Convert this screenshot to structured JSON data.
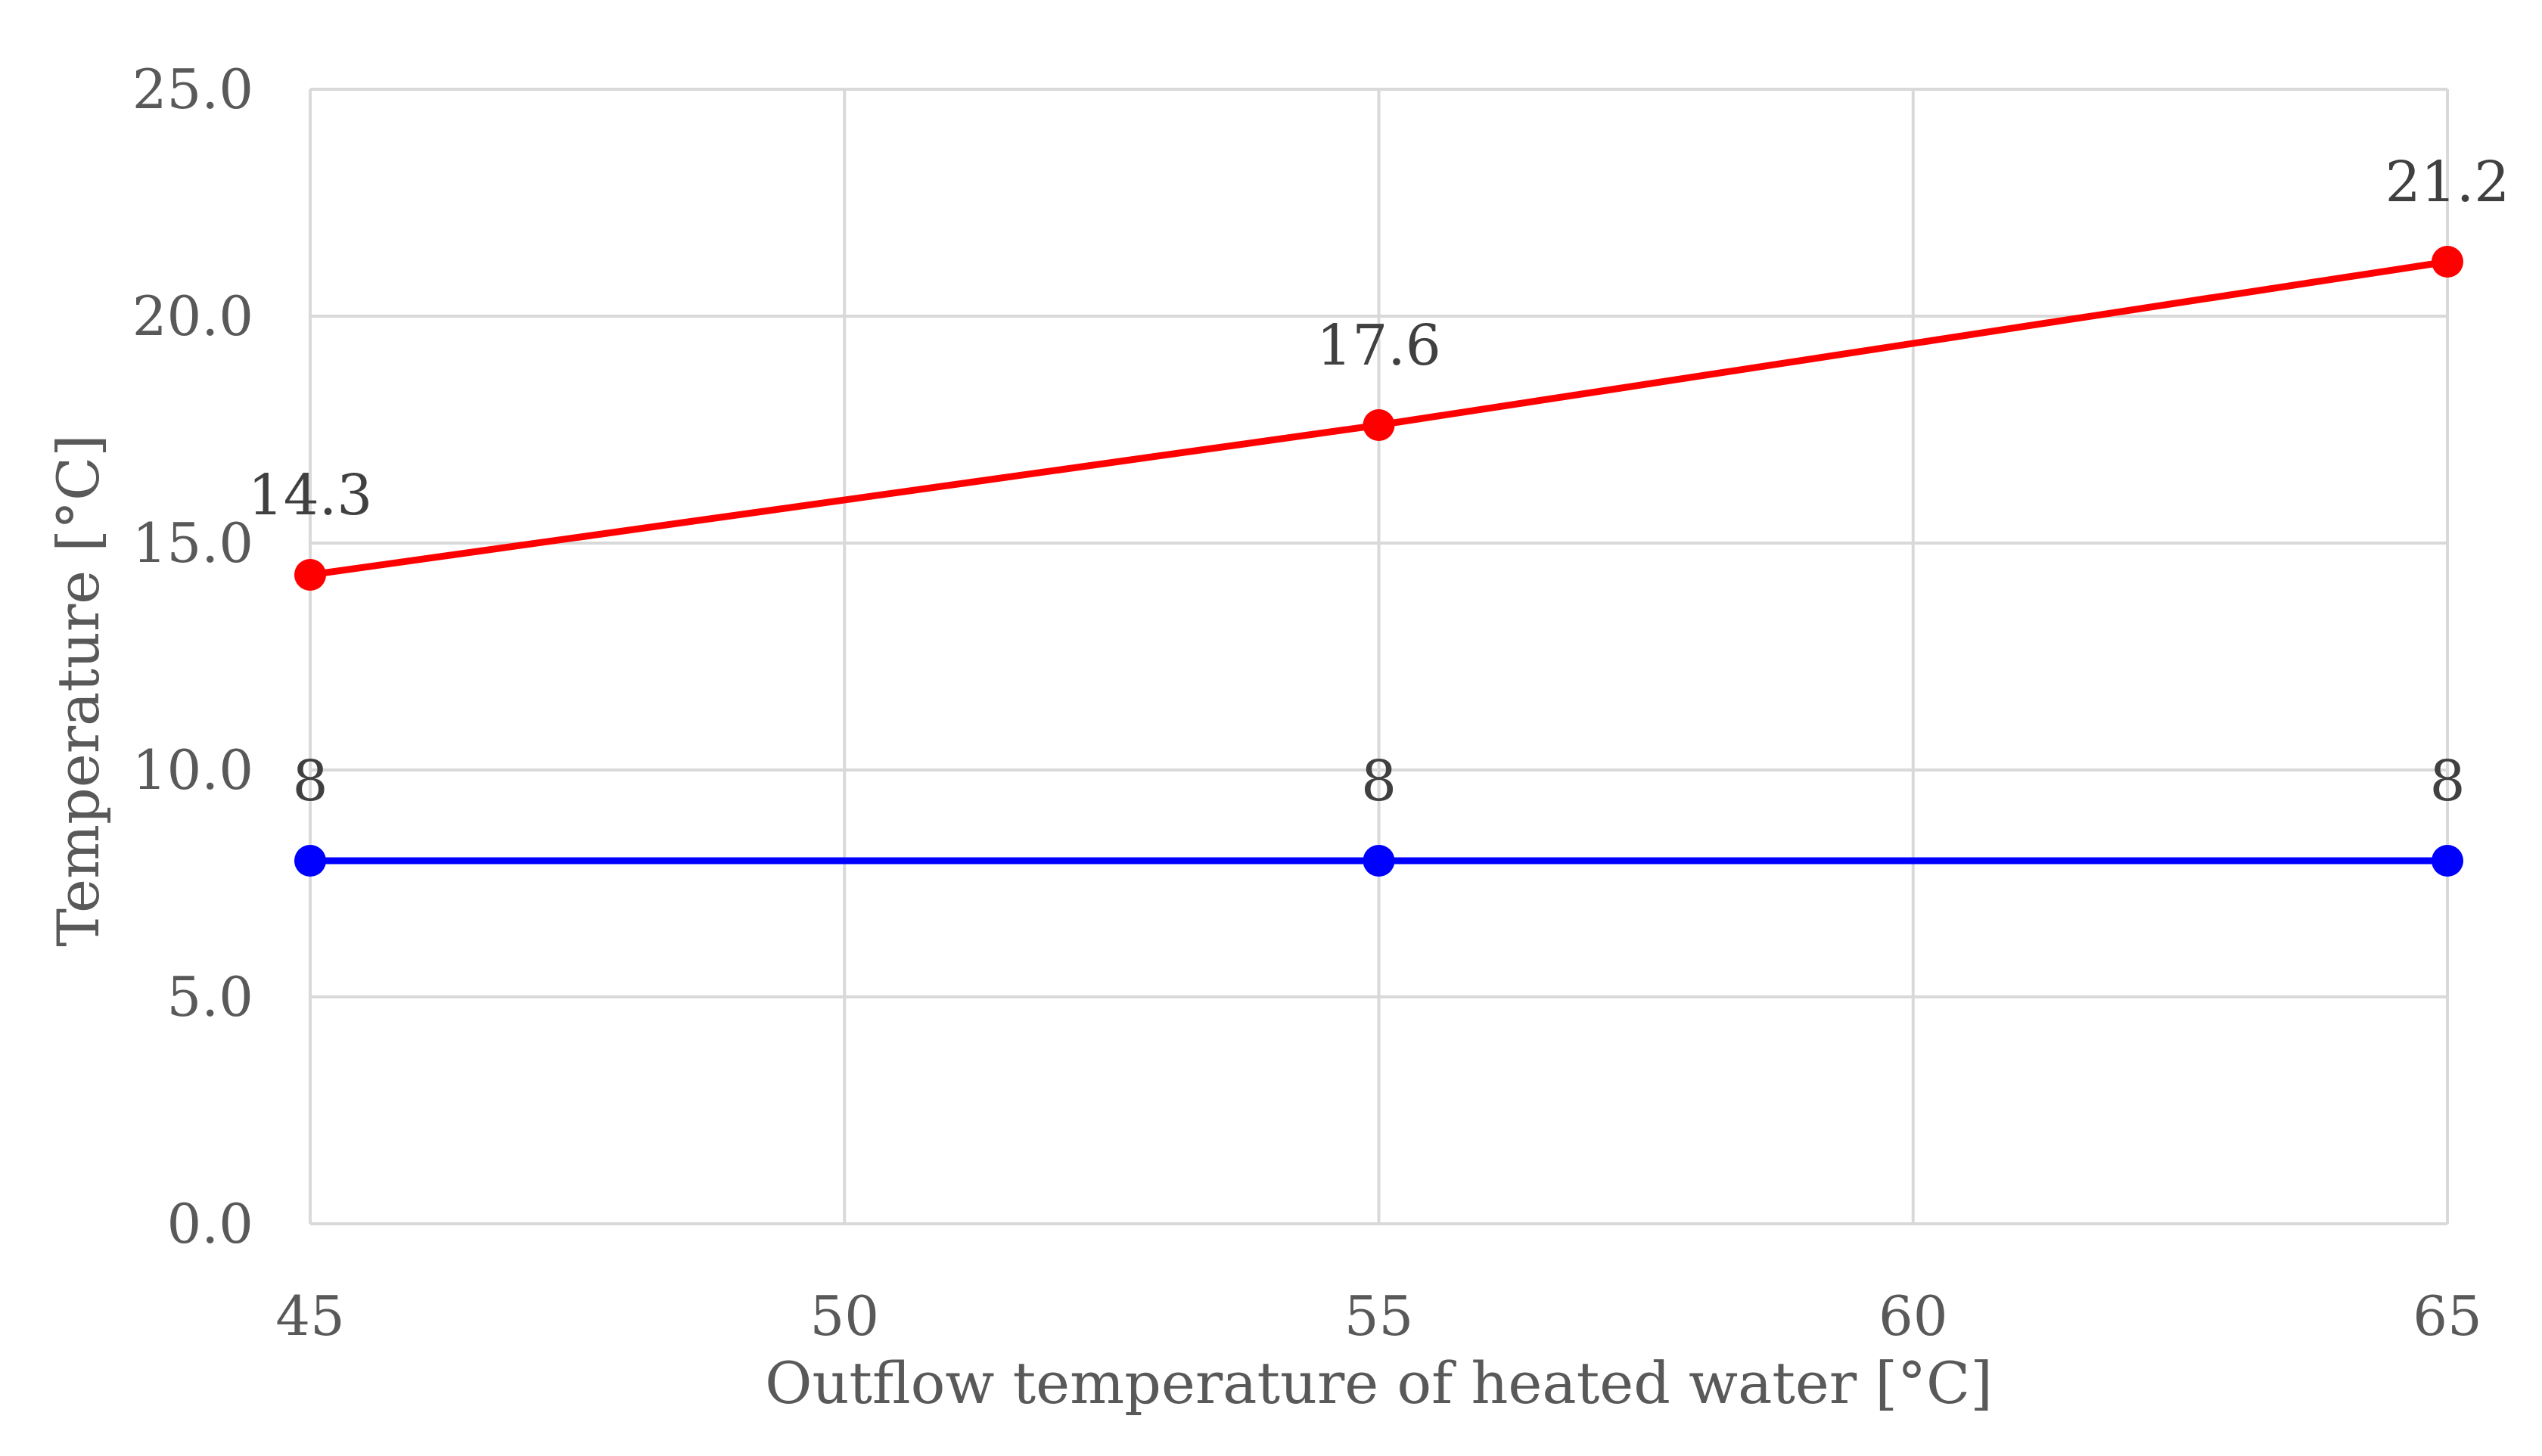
{
  "chart_data": {
    "type": "line",
    "title": "",
    "xlabel": "Outflow temperature of heated water [°C]",
    "ylabel": "Temperature [°C]",
    "x_ticks": [
      45,
      50,
      55,
      60,
      65
    ],
    "y_ticks": [
      "0.0",
      "5.0",
      "10.0",
      "15.0",
      "20.0",
      "25.0"
    ],
    "xlim": [
      45,
      65
    ],
    "ylim": [
      0,
      25
    ],
    "grid": true,
    "legend": "none",
    "series": [
      {
        "color": "#ff0000",
        "marker_color": "#ff0000",
        "points": [
          {
            "x": 45,
            "y": 14.3,
            "label": "14.3"
          },
          {
            "x": 55,
            "y": 17.6,
            "label": "17.6"
          },
          {
            "x": 65,
            "y": 21.2,
            "label": "21.2"
          }
        ]
      },
      {
        "color": "#0000ff",
        "marker_color": "#0000ff",
        "points": [
          {
            "x": 45,
            "y": 8,
            "label": "8"
          },
          {
            "x": 55,
            "y": 8,
            "label": "8"
          },
          {
            "x": 65,
            "y": 8,
            "label": "8"
          }
        ]
      }
    ],
    "colors": {
      "grid": "#d9d9d9",
      "axis_text": "#595959",
      "data_label": "#404040"
    }
  }
}
